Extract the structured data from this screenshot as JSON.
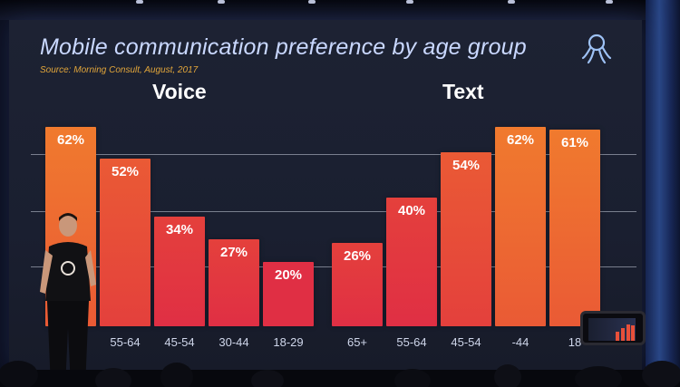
{
  "slide": {
    "title": "Mobile communication preference by age group",
    "source": "Source: Morning Consult, August, 2017",
    "voice_label": "Voice",
    "text_label": "Text",
    "logo": "octopus-logo-icon"
  },
  "chart_data": [
    {
      "type": "bar",
      "title": "Voice",
      "categories": [
        "",
        "55-64",
        "45-54",
        "30-44",
        "18-29"
      ],
      "values": [
        62,
        52,
        34,
        27,
        20
      ],
      "value_labels": [
        "62%",
        "52%",
        "34%",
        "27%",
        "20%"
      ],
      "ylim": [
        0,
        70
      ],
      "grid": true
    },
    {
      "type": "bar",
      "title": "Text",
      "categories": [
        "65+",
        "55-64",
        "45-54",
        "",
        ""
      ],
      "visible_category_fragments": [
        "65+",
        "55-64",
        "45-54",
        "-44",
        "18"
      ],
      "values": [
        26,
        40,
        54,
        62,
        61
      ],
      "value_labels": [
        "26%",
        "40%",
        "54%",
        "62%",
        "61%"
      ],
      "ylim": [
        0,
        70
      ],
      "grid": true
    }
  ],
  "colors": {
    "screen_bg": "#1b2030",
    "title": "#c9d8ff",
    "source": "#e2a63a",
    "bar_gradient": [
      "#f9b82e",
      "#f59a2c",
      "#f07a2e",
      "#ea5a35",
      "#e4403c",
      "#e02f44"
    ]
  }
}
